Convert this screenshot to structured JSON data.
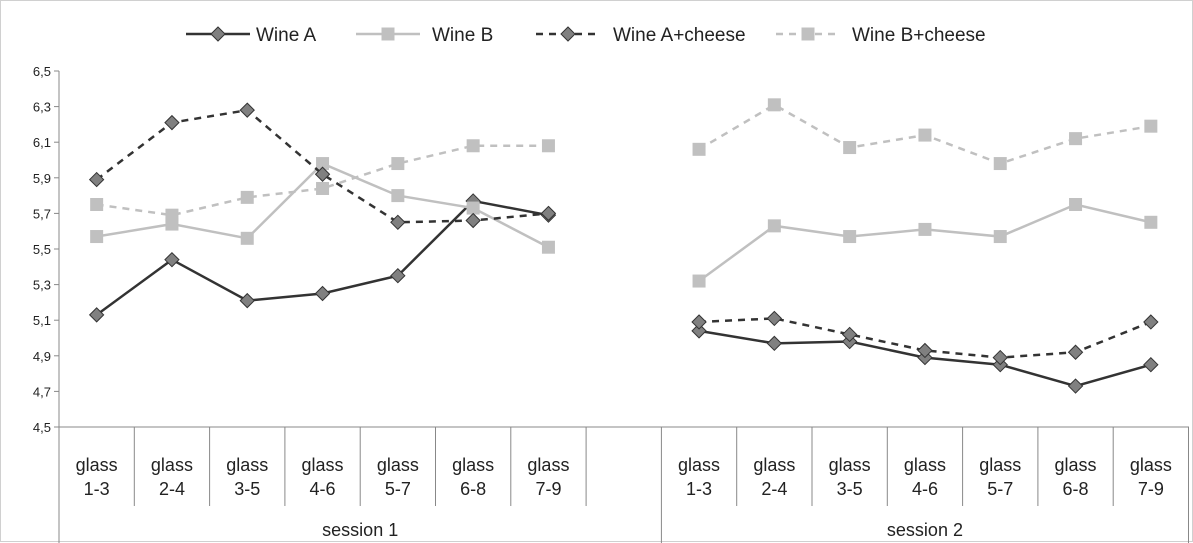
{
  "chart_data": {
    "type": "line",
    "title": "",
    "xlabel": "",
    "ylabel": "",
    "ylim": [
      4.5,
      6.5
    ],
    "yticks": [
      "4,5",
      "4,7",
      "4,9",
      "5,1",
      "5,3",
      "5,5",
      "5,7",
      "5,9",
      "6,1",
      "6,3",
      "6,5"
    ],
    "grid": false,
    "legend_position": "top",
    "groups": [
      {
        "label": "session 1",
        "categories": [
          "glass 1-3",
          "glass 2-4",
          "glass 3-5",
          "glass 4-6",
          "glass 5-7",
          "glass 6-8",
          "glass 7-9"
        ]
      },
      {
        "label": "session 2",
        "categories": [
          "glass 1-3",
          "glass 2-4",
          "glass 3-5",
          "glass 4-6",
          "glass 5-7",
          "glass 6-8",
          "glass 7-9"
        ]
      }
    ],
    "series": [
      {
        "name": "Wine A",
        "color": "#333333",
        "dash": "solid",
        "marker": "diamond",
        "values": [
          [
            5.13,
            5.44,
            5.21,
            5.25,
            5.35,
            5.77,
            5.69
          ],
          [
            5.04,
            4.97,
            4.98,
            4.89,
            4.85,
            4.73,
            4.85
          ]
        ]
      },
      {
        "name": "Wine B",
        "color": "#c0c0c0",
        "dash": "solid",
        "marker": "square",
        "values": [
          [
            5.57,
            5.64,
            5.56,
            5.98,
            5.8,
            5.73,
            5.51
          ],
          [
            5.32,
            5.63,
            5.57,
            5.61,
            5.57,
            5.75,
            5.65
          ]
        ]
      },
      {
        "name": "Wine A+cheese",
        "color": "#333333",
        "dash": "dashed",
        "marker": "diamond",
        "values": [
          [
            5.89,
            6.21,
            6.28,
            5.92,
            5.65,
            5.66,
            5.7
          ],
          [
            5.09,
            5.11,
            5.02,
            4.93,
            4.89,
            4.92,
            5.09
          ]
        ]
      },
      {
        "name": "Wine B+cheese",
        "color": "#c0c0c0",
        "dash": "dashed",
        "marker": "square",
        "values": [
          [
            5.75,
            5.69,
            5.79,
            5.84,
            5.98,
            6.08,
            6.08
          ],
          [
            6.06,
            6.31,
            6.07,
            6.14,
            5.98,
            6.12,
            6.19
          ]
        ]
      }
    ]
  }
}
